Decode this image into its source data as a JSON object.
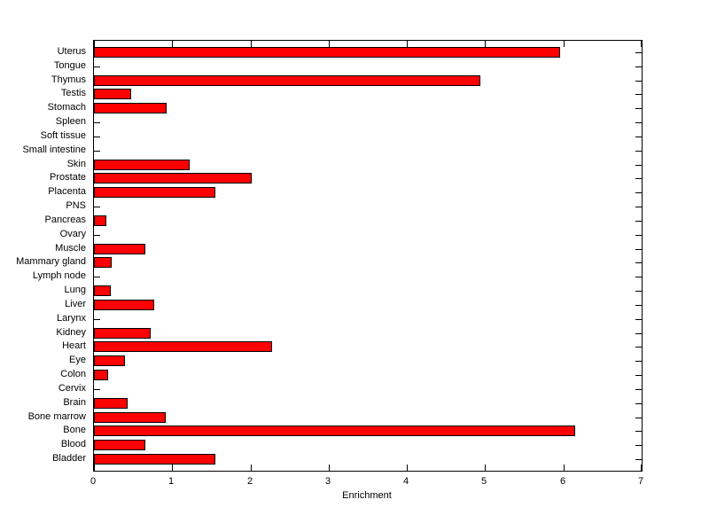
{
  "chart_data": {
    "type": "bar",
    "orientation": "horizontal",
    "title": "",
    "xlabel": "Enrichment",
    "ylabel": "",
    "xlim": [
      0,
      7
    ],
    "xticks": [
      0,
      1,
      2,
      3,
      4,
      5,
      6,
      7
    ],
    "grid": false,
    "legend": false,
    "categories": [
      "Uterus",
      "Tongue",
      "Thymus",
      "Testis",
      "Stomach",
      "Spleen",
      "Soft tissue",
      "Small intestine",
      "Skin",
      "Prostate",
      "Placenta",
      "PNS",
      "Pancreas",
      "Ovary",
      "Muscle",
      "Mammary gland",
      "Lymph node",
      "Lung",
      "Liver",
      "Larynx",
      "Kidney",
      "Heart",
      "Eye",
      "Colon",
      "Cervix",
      "Brain",
      "Bone marrow",
      "Bone",
      "Blood",
      "Bladder"
    ],
    "values": [
      5.96,
      0,
      4.94,
      0.48,
      0.93,
      0,
      0,
      0,
      1.22,
      2.02,
      1.55,
      0,
      0.16,
      0,
      0.66,
      0.23,
      0,
      0.22,
      0.77,
      0,
      0.73,
      2.28,
      0.4,
      0.18,
      0,
      0.43,
      0.92,
      6.15,
      0.66,
      1.55
    ],
    "bar_color": "#ff0000",
    "bar_edge_color": "#000000",
    "axis_color": "#000000",
    "background_color": "#ffffff"
  }
}
